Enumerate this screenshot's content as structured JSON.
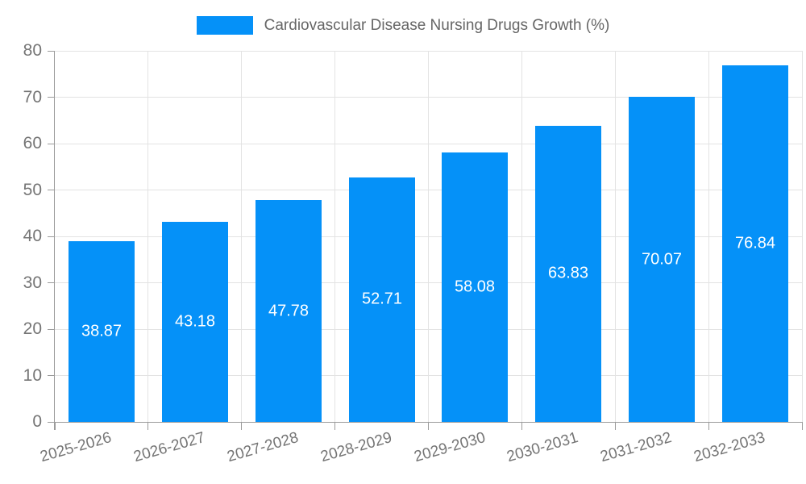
{
  "legend": {
    "series_label": "Cardiovascular Disease Nursing Drugs Growth (%)"
  },
  "chart_data": {
    "type": "bar",
    "title": "Cardiovascular Disease Nursing Drugs Growth (%)",
    "categories": [
      "2025-2026",
      "2026-2027",
      "2027-2028",
      "2028-2029",
      "2029-2030",
      "2030-2031",
      "2031-2032",
      "2032-2033"
    ],
    "values": [
      38.87,
      43.18,
      47.78,
      52.71,
      58.08,
      63.83,
      70.07,
      76.84
    ],
    "xlabel": "",
    "ylabel": "",
    "ylim": [
      0,
      80
    ],
    "ytick_step": 10,
    "yticks": [
      0,
      10,
      20,
      30,
      40,
      50,
      60,
      70,
      80
    ],
    "grid": "both",
    "legend_position": "top",
    "value_labels": "inside-center",
    "colors": {
      "bar": "#0591f8",
      "value_label": "#ffffff",
      "grid": "#e3e3e3",
      "axis": "#9b9b9b",
      "tick_label": "#757575",
      "title": "#666666"
    }
  }
}
